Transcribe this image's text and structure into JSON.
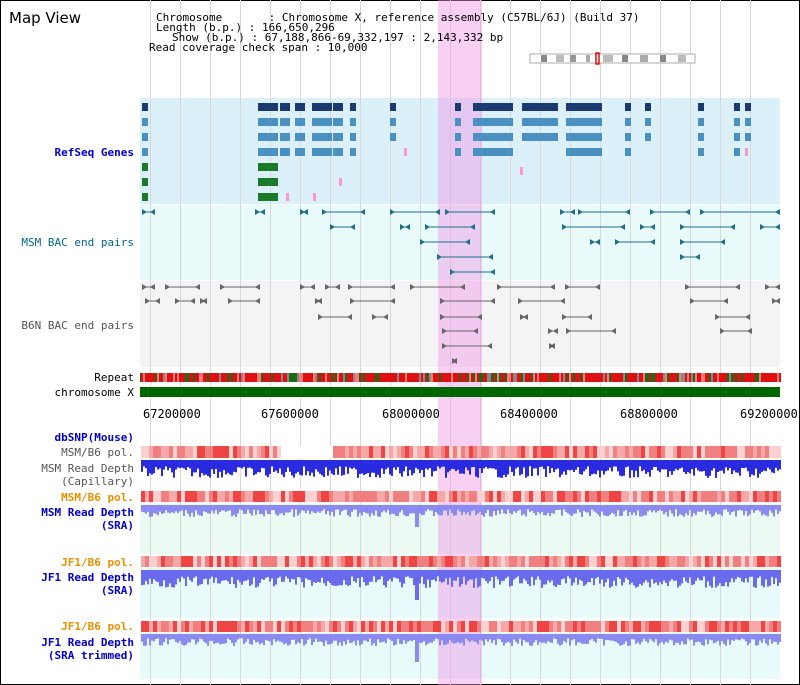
{
  "header": {
    "title": "Map View",
    "chromosome_line": "Chromosome       : Chromosome X, reference assembly (C57BL/6J) (Build 37)",
    "length_line": "Length (b.p.) : 166,650,296",
    "show_line": "Show (b.p.) : 67,188,866-69,332,197 : 2,143,332 bp",
    "coverage_line": "Read coverage check span : 10,000"
  },
  "tracks": {
    "refseq": "RefSeq Genes",
    "msm_bac": "MSM BAC end pairs",
    "b6n_bac": "B6N BAC end pairs",
    "repeat": "Repeat",
    "chromosome": "chromosome X",
    "dbsnp": "dbSNP(Mouse)",
    "msm_b6_pol_1": "MSM/B6 pol.",
    "msm_depth_cap": "MSM Read Depth\n(Capillary)",
    "msm_b6_pol_2": "MSM/B6 pol.",
    "msm_depth_sra": "MSM Read Depth\n(SRA)",
    "jf1_b6_pol_1": "JF1/B6 pol.",
    "jf1_depth_sra": "JF1 Read Depth\n(SRA)",
    "jf1_b6_pol_2": "JF1/B6 pol.",
    "jf1_depth_trim": "JF1 Read Depth\n(SRA trimmed)"
  },
  "axis": {
    "ticks": [
      "67200000",
      "67600000",
      "68000000",
      "68400000",
      "68800000",
      "69200000"
    ]
  },
  "colors": {
    "refseq_bg": "#dcf0fa",
    "msm_bg": "#e8fafa",
    "b6n_bg": "#f4f4f6",
    "depth_bg": "#ecfaf4",
    "highlight": "#f4b4ee",
    "chromosome": "#006600",
    "snp_red": "#ee3333",
    "depth_blue": "#3333ee",
    "depth_light": "#8888ff"
  }
}
